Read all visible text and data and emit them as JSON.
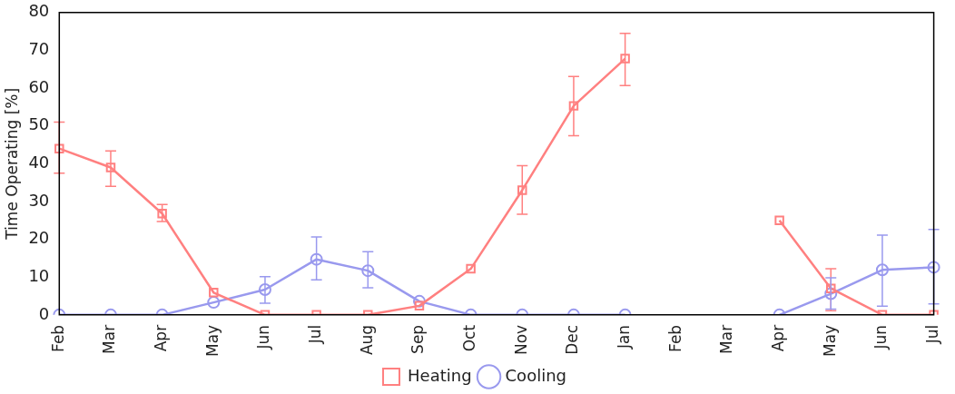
{
  "chart_data": {
    "type": "line",
    "ylabel": "Time Operating [%]",
    "categories": [
      "Feb",
      "Mar",
      "Apr",
      "May",
      "Jun",
      "Jul",
      "Aug",
      "Sep",
      "Oct",
      "Nov",
      "Dec",
      "Jan",
      "Feb",
      "Mar",
      "Apr",
      "May",
      "Jun",
      "Jul"
    ],
    "series": [
      {
        "name": "Heating",
        "color": "#ff8080",
        "marker": "square",
        "values": [
          44,
          39,
          26.8,
          5.9,
          0,
          0,
          0,
          2.4,
          12.2,
          33,
          55.3,
          67.8,
          null,
          null,
          25,
          7,
          0,
          0
        ],
        "errors": [
          [
            37.5,
            51
          ],
          [
            34,
            43.4
          ],
          [
            24.7,
            29.2
          ],
          null,
          null,
          null,
          null,
          null,
          null,
          [
            26.6,
            39.5
          ],
          [
            47.4,
            63.1
          ],
          [
            60.7,
            74.5
          ],
          null,
          null,
          null,
          [
            1.1,
            12.2
          ],
          null,
          null
        ]
      },
      {
        "name": "Cooling",
        "color": "#9999ee",
        "marker": "circle",
        "values": [
          0,
          0,
          0,
          3.3,
          6.7,
          14.7,
          11.7,
          3.6,
          0,
          0,
          0,
          0,
          null,
          null,
          0,
          5.6,
          11.9,
          12.6
        ],
        "errors": [
          null,
          null,
          null,
          null,
          [
            3.1,
            10.1
          ],
          [
            9.3,
            20.6
          ],
          [
            7.2,
            16.7
          ],
          null,
          null,
          null,
          null,
          null,
          null,
          null,
          null,
          [
            1.5,
            9.8
          ],
          [
            2.3,
            21.1
          ],
          [
            2.9,
            22.6
          ]
        ]
      }
    ],
    "ylim": [
      0,
      80
    ],
    "yticks": [
      0,
      10,
      20,
      30,
      40,
      50,
      60,
      70,
      80
    ],
    "grid": false,
    "legend": "bottom"
  }
}
